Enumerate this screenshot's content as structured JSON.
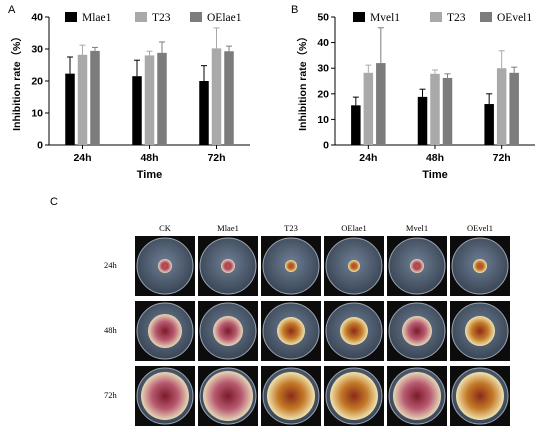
{
  "colors": {
    "black": "#000000",
    "light_gray": "#a9a9a9",
    "mid_gray": "#7c7c7c"
  },
  "chart_data": [
    {
      "panel": "A",
      "type": "bar",
      "categories": [
        "24h",
        "48h",
        "72h"
      ],
      "xlabel": "Time",
      "ylabel": "Inhibition rate（%）",
      "ylim": [
        0,
        40
      ],
      "yticks": [
        0,
        10,
        20,
        30,
        40
      ],
      "legend_position": "top",
      "series": [
        {
          "name": "Mlae1",
          "color": "#000000",
          "values": [
            22.3,
            21.5,
            20.0
          ],
          "errors": [
            5.2,
            5.0,
            4.8
          ]
        },
        {
          "name": "T23",
          "color": "#a9a9a9",
          "values": [
            28.2,
            28.0,
            30.2
          ],
          "errors": [
            3.0,
            1.3,
            6.4
          ]
        },
        {
          "name": "OElae1",
          "color": "#7c7c7c",
          "values": [
            29.4,
            28.8,
            29.3
          ],
          "errors": [
            1.1,
            3.4,
            1.6
          ]
        }
      ]
    },
    {
      "panel": "B",
      "type": "bar",
      "categories": [
        "24h",
        "48h",
        "72h"
      ],
      "xlabel": "Time",
      "ylabel": "Inhibition rate（%）",
      "ylim": [
        0,
        50
      ],
      "yticks": [
        0,
        10,
        20,
        30,
        40,
        50
      ],
      "legend_position": "top",
      "series": [
        {
          "name": "Mvel1",
          "color": "#000000",
          "values": [
            15.5,
            18.8,
            16.0
          ],
          "errors": [
            3.2,
            3.0,
            4.0
          ]
        },
        {
          "name": "T23",
          "color": "#a9a9a9",
          "values": [
            28.2,
            27.8,
            30.0
          ],
          "errors": [
            3.0,
            1.5,
            6.8
          ]
        },
        {
          "name": "OEvel1",
          "color": "#7c7c7c",
          "values": [
            32.0,
            26.2,
            28.2
          ],
          "errors": [
            13.8,
            1.6,
            2.2
          ]
        }
      ]
    }
  ],
  "panels": {
    "a": "A",
    "b": "B",
    "c": "C"
  },
  "plates": {
    "columns": [
      "CK",
      "Mlae1",
      "T23",
      "OElae1",
      "Mvel1",
      "OEvel1"
    ],
    "rows": [
      "24h",
      "48h",
      "72h"
    ]
  }
}
